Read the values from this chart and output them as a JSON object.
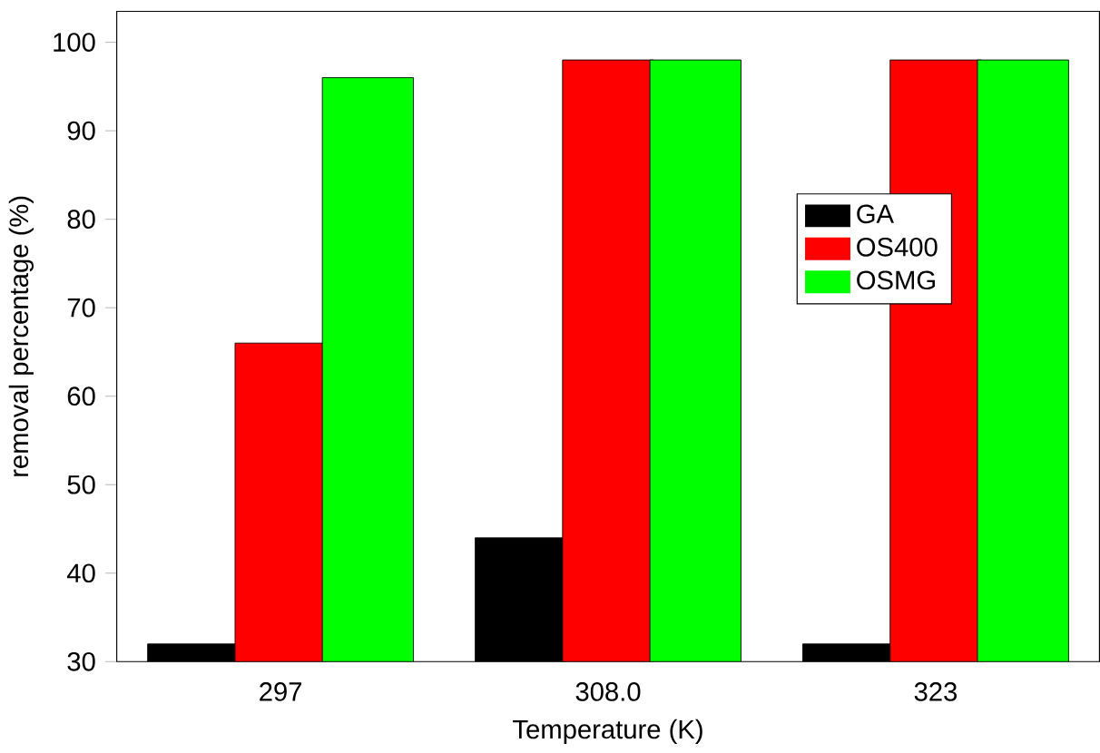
{
  "chart_data": {
    "type": "bar",
    "xlabel": "Temperature (K)",
    "ylabel": "removal percentage (%)",
    "categories": [
      "297",
      "308.0",
      "323"
    ],
    "series": [
      {
        "name": "GA",
        "color": "#000000",
        "values": [
          32,
          44,
          32
        ]
      },
      {
        "name": "OS400",
        "color": "#ff0000",
        "values": [
          66,
          98,
          98
        ]
      },
      {
        "name": "OSMG",
        "color": "#00ff00",
        "values": [
          96,
          98,
          98
        ]
      }
    ],
    "ylim": [
      30,
      103.5
    ],
    "yticks": [
      30,
      40,
      50,
      60,
      70,
      80,
      90,
      100
    ],
    "legend": "right",
    "grid": false
  }
}
